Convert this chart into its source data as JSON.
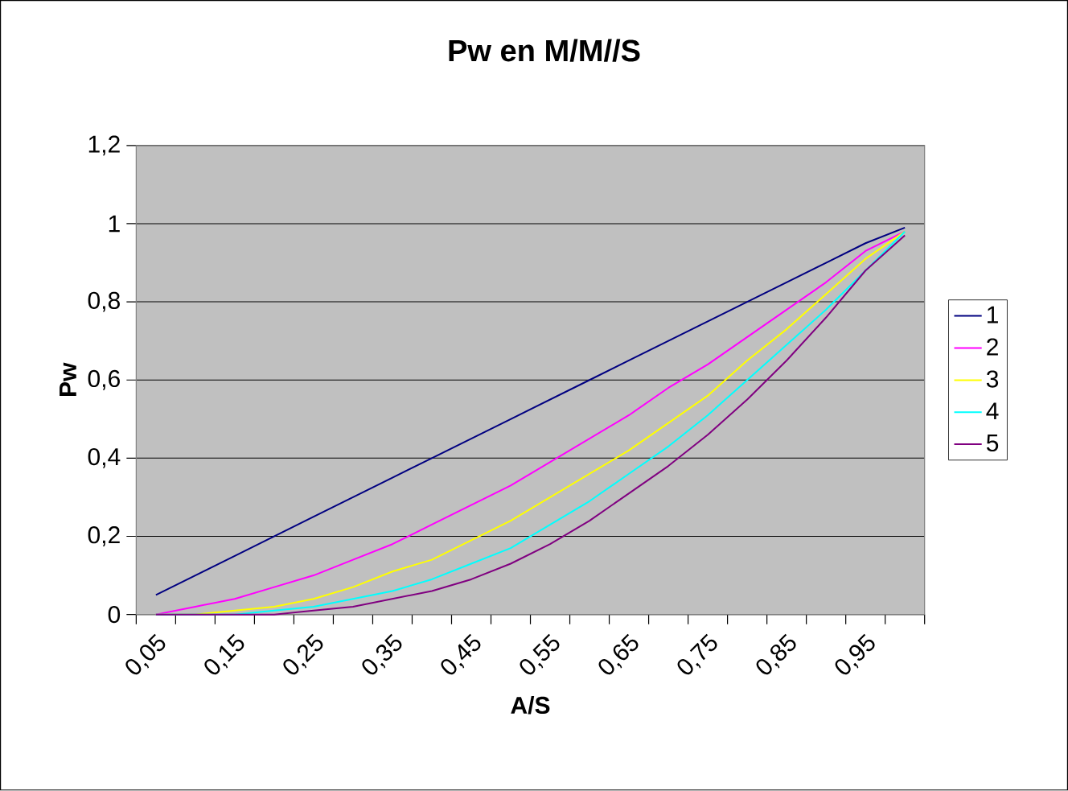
{
  "chart_data": {
    "type": "line",
    "title": "Pw en M/M//S",
    "xlabel": "A/S",
    "ylabel": "Pw",
    "categories": [
      "0,05",
      null,
      "0,15",
      null,
      "0,25",
      null,
      "0,35",
      null,
      "0,45",
      null,
      "0,55",
      null,
      "0,65",
      null,
      "0,75",
      null,
      "0,85",
      null,
      "0,95",
      null
    ],
    "series": [
      {
        "name": "1",
        "color": "#000080",
        "values": [
          0.05,
          0.1,
          0.15,
          0.2,
          0.25,
          0.3,
          0.35,
          0.4,
          0.45,
          0.5,
          0.55,
          0.6,
          0.65,
          0.7,
          0.75,
          0.8,
          0.85,
          0.9,
          0.95,
          0.99
        ]
      },
      {
        "name": "2",
        "color": "#ff00ff",
        "values": [
          0.0,
          0.02,
          0.04,
          0.07,
          0.1,
          0.14,
          0.18,
          0.23,
          0.28,
          0.33,
          0.39,
          0.45,
          0.51,
          0.58,
          0.64,
          0.71,
          0.78,
          0.85,
          0.93,
          0.98
        ]
      },
      {
        "name": "3",
        "color": "#ffff00",
        "values": [
          0.0,
          0.0,
          0.01,
          0.02,
          0.04,
          0.07,
          0.11,
          0.14,
          0.19,
          0.24,
          0.3,
          0.36,
          0.42,
          0.49,
          0.56,
          0.65,
          0.73,
          0.82,
          0.91,
          0.98
        ]
      },
      {
        "name": "4",
        "color": "#00ffff",
        "values": [
          0.0,
          0.0,
          0.0,
          0.01,
          0.02,
          0.04,
          0.06,
          0.09,
          0.13,
          0.17,
          0.23,
          0.29,
          0.36,
          0.43,
          0.51,
          0.6,
          0.69,
          0.78,
          0.88,
          0.98
        ]
      },
      {
        "name": "5",
        "color": "#800080",
        "values": [
          0.0,
          0.0,
          0.0,
          0.0,
          0.01,
          0.02,
          0.04,
          0.06,
          0.09,
          0.13,
          0.18,
          0.24,
          0.31,
          0.38,
          0.46,
          0.55,
          0.65,
          0.76,
          0.88,
          0.97
        ]
      }
    ],
    "ylim": [
      0,
      1.2
    ],
    "yticks": [
      0,
      {
        "value": 0.2,
        "label": "0,2"
      },
      {
        "value": 0.4,
        "label": "0,4"
      },
      {
        "value": 0.6,
        "label": "0,6"
      },
      {
        "value": 0.8,
        "label": "0,8"
      },
      1,
      {
        "value": 1.2,
        "label": "1,2"
      }
    ],
    "grid": "y",
    "legend": "right",
    "marker": "none",
    "line_style": "solid"
  }
}
